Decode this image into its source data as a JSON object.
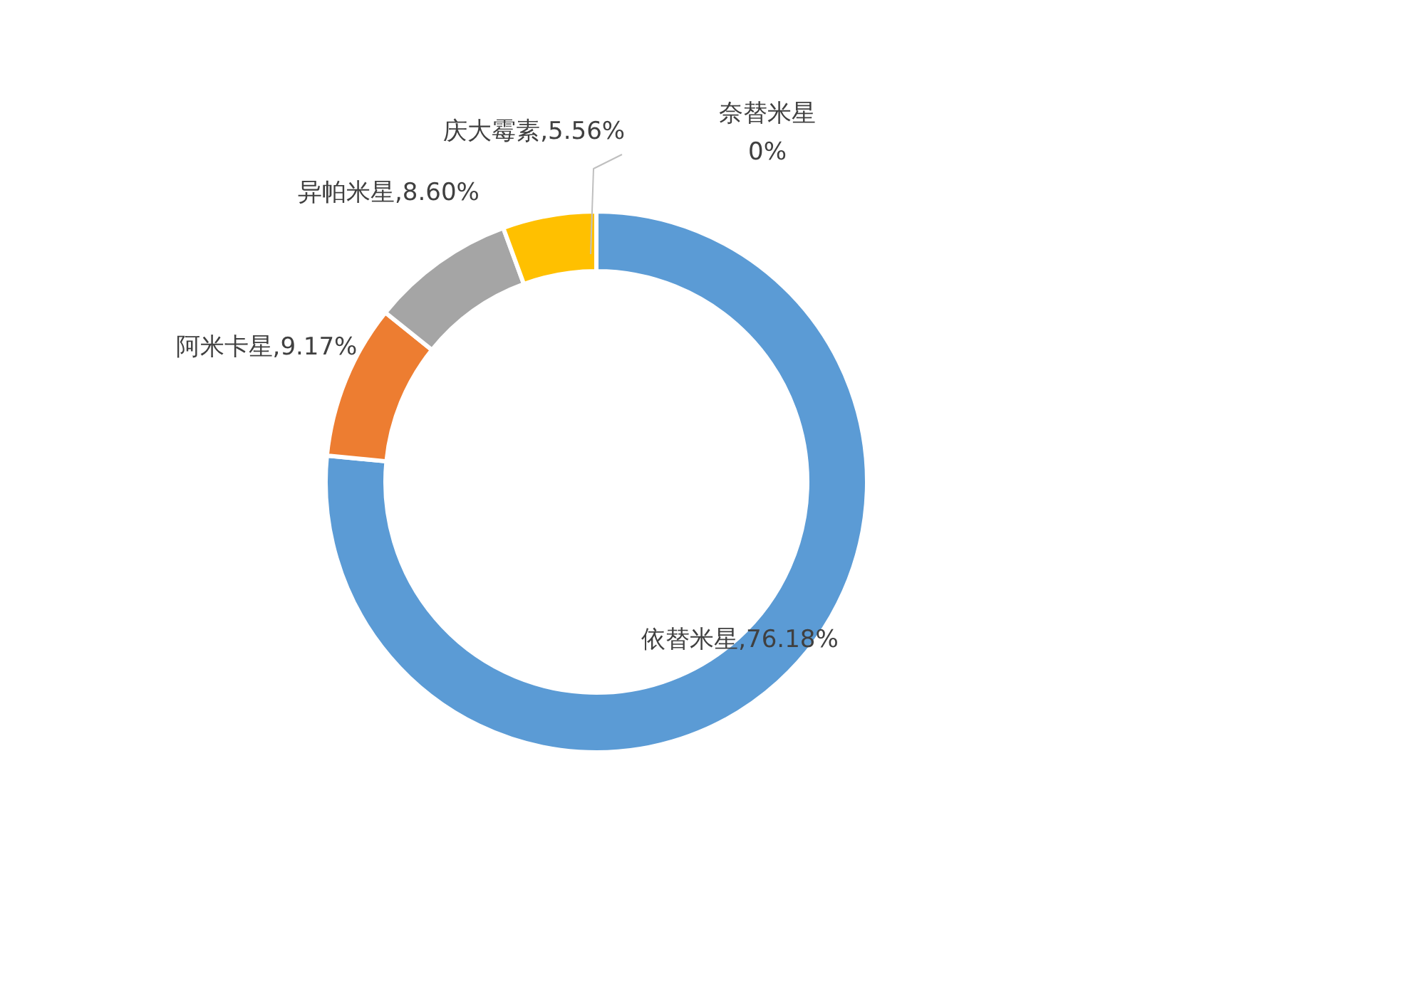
{
  "chart_data": {
    "type": "donut",
    "categories": [
      "依替米星",
      "阿米卡星",
      "异帕米星",
      "庆大霉素",
      "奈替米星"
    ],
    "values": [
      76.18,
      9.17,
      8.6,
      5.56,
      0
    ],
    "colors": [
      "#5b9bd5",
      "#ed7d31",
      "#a5a5a5",
      "#ffc000",
      "#4472c4"
    ],
    "value_labels": [
      "76.18%",
      "9.17%",
      "8.60%",
      "5.56%",
      "0%"
    ]
  }
}
